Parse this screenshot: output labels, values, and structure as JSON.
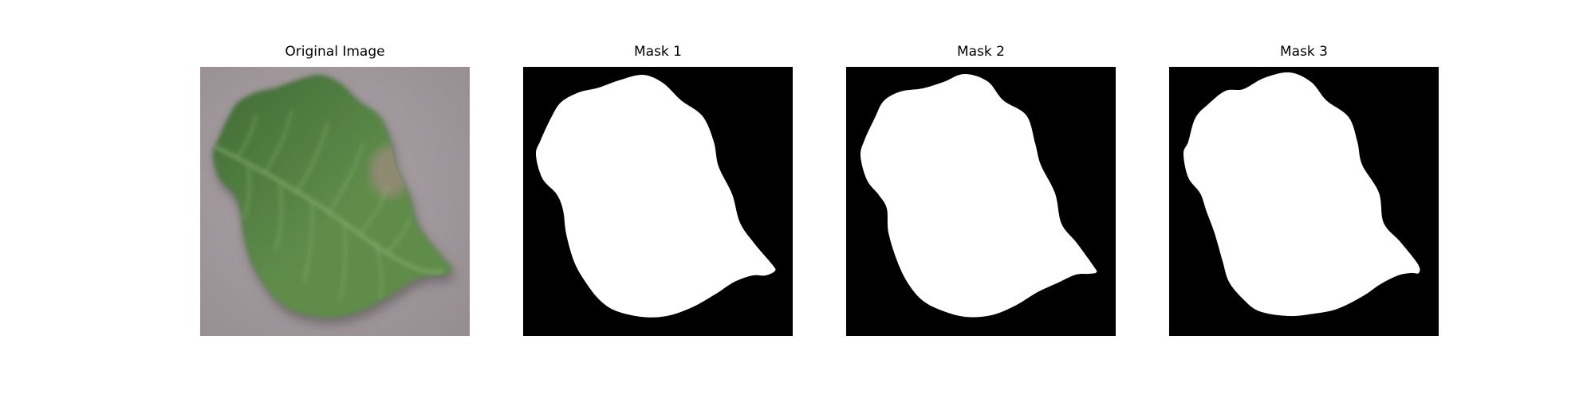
{
  "figure": {
    "panels": [
      {
        "title": "Original Image",
        "kind": "photo"
      },
      {
        "title": "Mask 1",
        "kind": "mask"
      },
      {
        "title": "Mask 2",
        "kind": "mask"
      },
      {
        "title": "Mask 3",
        "kind": "mask"
      }
    ]
  },
  "colors": {
    "background": "#ffffff",
    "mask_background": "#000000",
    "mask_foreground": "#ffffff",
    "photo_background": "#a49b9f",
    "leaf": "#5e8c4a",
    "leaf_light": "#8fb676",
    "leaf_dark": "#3f6b35",
    "lesion": "#8e8a72"
  }
}
